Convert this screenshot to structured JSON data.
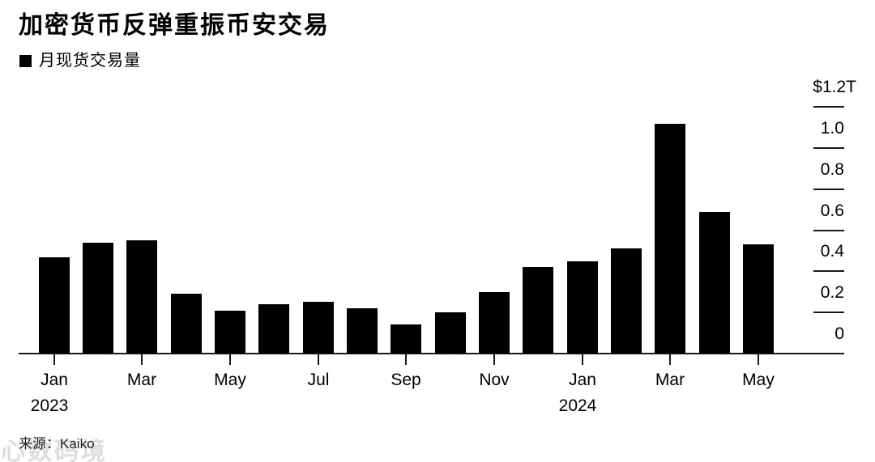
{
  "header": {
    "title": "加密货币反弹重振币安交易"
  },
  "legend": {
    "label": "月现货交易量",
    "swatch_color": "#000000"
  },
  "source": {
    "label": "来源：Kaiko"
  },
  "watermark": {
    "text": "心数码境"
  },
  "colors": {
    "bar": "#000000",
    "axis": "#1a1a1a",
    "background": "#ffffff"
  },
  "chart_data": {
    "type": "bar",
    "title": "加密货币反弹重振币安交易",
    "series_name": "月现货交易量",
    "unit": "USD trillions",
    "categories": [
      "Jan 2023",
      "Feb 2023",
      "Mar 2023",
      "Apr 2023",
      "May 2023",
      "Jun 2023",
      "Jul 2023",
      "Aug 2023",
      "Sep 2023",
      "Oct 2023",
      "Nov 2023",
      "Dec 2023",
      "Jan 2024",
      "Feb 2024",
      "Mar 2024",
      "Apr 2024",
      "May 2024"
    ],
    "values": [
      0.47,
      0.54,
      0.55,
      0.29,
      0.21,
      0.24,
      0.25,
      0.22,
      0.14,
      0.2,
      0.3,
      0.42,
      0.45,
      0.51,
      1.12,
      0.69,
      0.53
    ],
    "ylim": [
      0,
      1.2
    ],
    "axis_side": "right",
    "grid": false,
    "y_ticks": [
      {
        "label": "$1.2T",
        "value": 1.2
      },
      {
        "label": "1.0",
        "value": 1.0
      },
      {
        "label": "0.8",
        "value": 0.8
      },
      {
        "label": "0.6",
        "value": 0.6
      },
      {
        "label": "0.4",
        "value": 0.4
      },
      {
        "label": "0.2",
        "value": 0.2
      },
      {
        "label": "0",
        "value": 0
      }
    ],
    "x_ticks": [
      {
        "label": "Jan",
        "index": 0
      },
      {
        "label": "Mar",
        "index": 2
      },
      {
        "label": "May",
        "index": 4
      },
      {
        "label": "Jul",
        "index": 6
      },
      {
        "label": "Sep",
        "index": 8
      },
      {
        "label": "Nov",
        "index": 10
      },
      {
        "label": "Jan",
        "index": 12
      },
      {
        "label": "Mar",
        "index": 14
      },
      {
        "label": "May",
        "index": 16
      }
    ],
    "year_labels": [
      {
        "text": "2023",
        "index": 0
      },
      {
        "text": "2024",
        "index": 12
      }
    ]
  }
}
